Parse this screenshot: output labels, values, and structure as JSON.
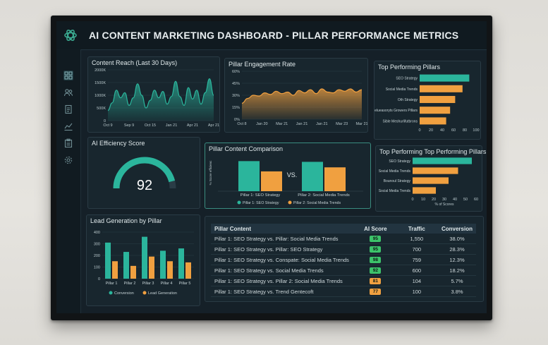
{
  "app": {
    "title": "AI CONTENT MARKETING DASHBOARD - PILLAR PERFORMANCE METRICS",
    "logo_icon": "openai-knot-icon",
    "nav_icons": [
      "grid-icon",
      "users-icon",
      "document-icon",
      "line-chart-icon",
      "clipboard-icon",
      "gear-icon"
    ]
  },
  "colors": {
    "teal": "#2bb59c",
    "orange": "#f0a040",
    "panel_bg": "#18262e",
    "screen_bg": "#152028"
  },
  "panels": {
    "content_reach": {
      "title": "Content Reach (Last 30 Days)"
    },
    "engagement": {
      "title": "Pillar Engagement Rate"
    },
    "top_pillars": {
      "title": "Top Performing Pillars"
    },
    "efficiency": {
      "title": "AI Efficiency Score",
      "score": "92",
      "score_value": 92,
      "max": 100
    },
    "comparison": {
      "title": "Pillar Content Comparison",
      "vs": "VS."
    },
    "top_pillars_2": {
      "title": "Top Performing Top Performing Pillars"
    },
    "lead_gen": {
      "title": "Lead Generation by Pillar"
    }
  },
  "chart_data": [
    {
      "id": "content_reach",
      "type": "area",
      "title": "Content Reach (Last 30 Days)",
      "x_ticks": [
        "Oct 9",
        "Sep 9",
        "Oct 15",
        "Jan 21",
        "Apr 21",
        "Apr 21"
      ],
      "y_ticks": [
        "0",
        "500K",
        "1000K",
        "1500K",
        "2000K"
      ],
      "ylim": [
        0,
        2000000
      ],
      "values": [
        400000,
        700000,
        1200000,
        900000,
        1100000,
        600000,
        900000,
        1450000,
        1000000,
        500000,
        800000,
        1200000,
        900000,
        1150000,
        650000,
        950000,
        1550000,
        950000,
        600000,
        1300000,
        850000,
        1200000,
        650000,
        1100000,
        1650000,
        1000000
      ]
    },
    {
      "id": "engagement",
      "type": "area",
      "title": "Pillar Engagement Rate",
      "x_ticks": [
        "Oct 8",
        "Jan 20",
        "Mar 21",
        "Jan 21",
        "Jan 21",
        "Mar 23",
        "Mar 21"
      ],
      "y_ticks": [
        "0%",
        "15%",
        "30%",
        "45%",
        "60%"
      ],
      "ylim": [
        0,
        60
      ],
      "values": [
        20,
        26,
        30,
        29,
        33,
        31,
        35,
        32,
        34,
        30,
        36,
        33,
        37,
        32,
        38,
        34,
        33,
        37,
        35,
        38,
        34,
        37
      ]
    },
    {
      "id": "top_pillars",
      "type": "bar",
      "orientation": "horizontal",
      "title": "Top Performing Pillars",
      "categories": [
        "SEO Strategy",
        "Social Media Trends",
        "Oth Strategy",
        "Relueasoryts Growers Pillars",
        "Sible Meshurlifutbrons"
      ],
      "values": [
        88,
        76,
        63,
        54,
        47
      ],
      "bar_colors": [
        "#2bb59c",
        "#f0a040",
        "#f0a040",
        "#f0a040",
        "#f0a040"
      ],
      "x_ticks": [
        "0",
        "20",
        "40",
        "60",
        "80",
        "100"
      ],
      "xlim": [
        0,
        100
      ]
    },
    {
      "id": "comparison",
      "type": "bar",
      "title": "Pillar Content Comparison",
      "ylabel": "% Score efficienc",
      "groups": [
        "Pillar 1: SEO Strategy",
        "Pillar 2: Social Media Trends"
      ],
      "series": [
        {
          "name": "Pillar 1: SEO Strategy",
          "values": [
            82,
            80
          ],
          "color": "#2bb59c"
        },
        {
          "name": "Pillar 2: Social Media Trends",
          "values": [
            54,
            65
          ],
          "color": "#f0a040"
        }
      ],
      "ylim": [
        0,
        100
      ]
    },
    {
      "id": "top_pillars_2",
      "type": "bar",
      "orientation": "horizontal",
      "title": "Top Performing Top Performing Pillars",
      "categories": [
        "SEO Strategy",
        "Social Media Trends",
        "Bounoul Strategy",
        "Social Media Trends"
      ],
      "values": [
        56,
        43,
        34,
        22
      ],
      "bar_colors": [
        "#2bb59c",
        "#f0a040",
        "#f0a040",
        "#f0a040"
      ],
      "x_ticks": [
        "0",
        "10",
        "20",
        "30",
        "40",
        "50",
        "60"
      ],
      "xlim": [
        0,
        60
      ],
      "xlabel": "% of Scores"
    },
    {
      "id": "lead_gen",
      "type": "bar",
      "title": "Lead Generation by Pillar",
      "categories": [
        "Pillar 1",
        "Pillar 2",
        "Pillar 3",
        "Pillar 4",
        "Pillar 5"
      ],
      "series": [
        {
          "name": "Conversion",
          "values": [
            310,
            230,
            360,
            240,
            260
          ],
          "color": "#2bb59c"
        },
        {
          "name": "Lead Generation",
          "values": [
            150,
            110,
            190,
            150,
            140
          ],
          "color": "#f0a040"
        }
      ],
      "y_ticks": [
        "0",
        "100",
        "200",
        "300",
        "400"
      ],
      "ylim": [
        0,
        400
      ]
    }
  ],
  "table": {
    "headers": [
      "Pillar Content",
      "AI Score",
      "Traffic",
      "Conversion"
    ],
    "rows": [
      {
        "content": "Pillar 1: SEO Strategy vs. Pillar: Social Media Trends",
        "score": "95",
        "score_color": "#3cc36a",
        "traffic": "1,550",
        "conversion": "38.0%"
      },
      {
        "content": "Pillar 1: SEO Strategy vs. Pillar: SEO Strategy",
        "score": "95",
        "score_color": "#3cc36a",
        "traffic": "700",
        "conversion": "28.3%"
      },
      {
        "content": "Pillar 1: SEO Strategy vs. Conspate: Social Media Trends",
        "score": "98",
        "score_color": "#3cc36a",
        "traffic": "759",
        "conversion": "12.3%"
      },
      {
        "content": "Pillar 1: SEO Strategy vs. Social Media Trends",
        "score": "92",
        "score_color": "#3cc36a",
        "traffic": "600",
        "conversion": "18.2%"
      },
      {
        "content": "Pillar 1: SEO Strategy vs. Pillar 2: Social Media Trends",
        "score": "81",
        "score_color": "#f0a040",
        "traffic": "104",
        "conversion": "5.7%"
      },
      {
        "content": "Pillar 1: SEO Strategy vs. Trend Gentecoft",
        "score": "77",
        "score_color": "#f0a040",
        "traffic": "100",
        "conversion": "3.8%"
      }
    ]
  }
}
